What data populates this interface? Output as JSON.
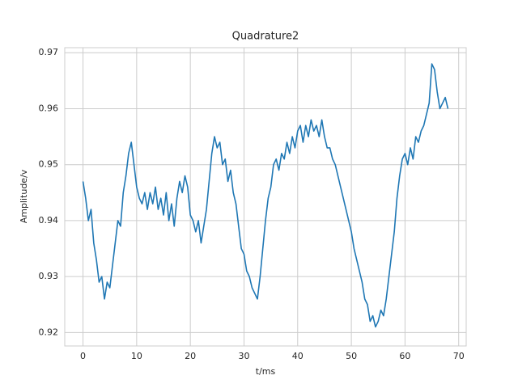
{
  "chart_data": {
    "type": "line",
    "title": "Quadrature2",
    "x_label": "t/ms",
    "y_label": "Amplitude/v",
    "x": [
      0,
      0.5,
      1,
      1.5,
      2,
      2.5,
      3,
      3.5,
      4,
      4.5,
      5,
      5.5,
      6,
      6.5,
      7,
      7.5,
      8,
      8.5,
      9,
      9.5,
      10,
      10.5,
      11,
      11.5,
      12,
      12.5,
      13,
      13.5,
      14,
      14.5,
      15,
      15.5,
      16,
      16.5,
      17,
      17.5,
      18,
      18.5,
      19,
      19.5,
      20,
      20.5,
      21,
      21.5,
      22,
      22.5,
      23,
      23.5,
      24,
      24.5,
      25,
      25.5,
      26,
      26.5,
      27,
      27.5,
      28,
      28.5,
      29,
      29.5,
      30,
      30.5,
      31,
      31.5,
      32,
      32.5,
      33,
      33.5,
      34,
      34.5,
      35,
      35.5,
      36,
      36.5,
      37,
      37.5,
      38,
      38.5,
      39,
      39.5,
      40,
      40.5,
      41,
      41.5,
      42,
      42.5,
      43,
      43.5,
      44,
      44.5,
      45,
      45.5,
      46,
      46.5,
      47,
      47.5,
      48,
      48.5,
      49,
      49.5,
      50,
      50.5,
      51,
      51.5,
      52,
      52.5,
      53,
      53.5,
      54,
      54.5,
      55,
      55.5,
      56,
      56.5,
      57,
      57.5,
      58,
      58.5,
      59,
      59.5,
      60,
      60.5,
      61,
      61.5,
      62,
      62.5,
      63,
      63.5,
      64,
      64.5,
      65,
      65.5,
      66,
      66.5,
      67,
      67.5,
      68
    ],
    "series": [
      {
        "name": "Quadrature2",
        "color": "#1f77b4",
        "values": [
          0.947,
          0.944,
          0.94,
          0.942,
          0.936,
          0.933,
          0.929,
          0.93,
          0.926,
          0.929,
          0.928,
          0.932,
          0.936,
          0.94,
          0.939,
          0.945,
          0.948,
          0.952,
          0.954,
          0.95,
          0.946,
          0.944,
          0.943,
          0.945,
          0.942,
          0.945,
          0.943,
          0.946,
          0.942,
          0.944,
          0.941,
          0.945,
          0.94,
          0.943,
          0.939,
          0.944,
          0.947,
          0.945,
          0.948,
          0.946,
          0.941,
          0.94,
          0.938,
          0.94,
          0.936,
          0.939,
          0.942,
          0.947,
          0.952,
          0.955,
          0.953,
          0.954,
          0.95,
          0.951,
          0.947,
          0.949,
          0.945,
          0.943,
          0.939,
          0.935,
          0.934,
          0.931,
          0.93,
          0.928,
          0.927,
          0.926,
          0.93,
          0.935,
          0.94,
          0.944,
          0.946,
          0.95,
          0.951,
          0.949,
          0.952,
          0.951,
          0.954,
          0.952,
          0.955,
          0.953,
          0.956,
          0.957,
          0.954,
          0.957,
          0.955,
          0.958,
          0.956,
          0.957,
          0.955,
          0.958,
          0.955,
          0.953,
          0.953,
          0.951,
          0.95,
          0.948,
          0.946,
          0.944,
          0.942,
          0.94,
          0.938,
          0.935,
          0.933,
          0.931,
          0.929,
          0.926,
          0.925,
          0.922,
          0.923,
          0.921,
          0.922,
          0.924,
          0.923,
          0.926,
          0.93,
          0.934,
          0.938,
          0.944,
          0.948,
          0.951,
          0.952,
          0.95,
          0.953,
          0.951,
          0.955,
          0.954,
          0.956,
          0.957,
          0.959,
          0.961,
          0.968,
          0.967,
          0.963,
          0.96,
          0.961,
          0.962,
          0.96
        ]
      }
    ],
    "xlim": [
      -3.4,
      71.4
    ],
    "xticks": [
      0,
      10,
      20,
      30,
      40,
      50,
      60,
      70
    ],
    "ylim": [
      0.9176,
      0.9709
    ],
    "yticks": [
      0.92,
      0.93,
      0.94,
      0.95,
      0.96,
      0.97
    ],
    "grid": true
  }
}
